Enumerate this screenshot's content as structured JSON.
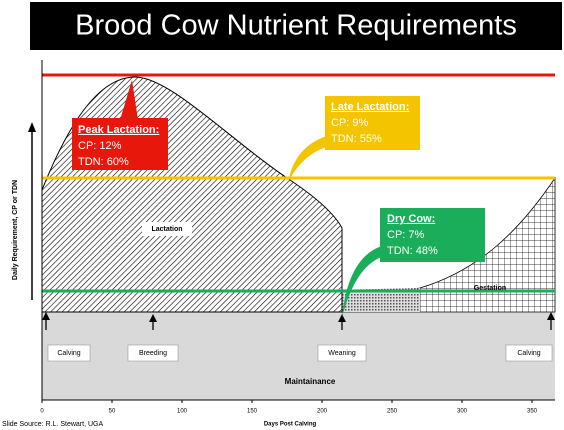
{
  "title": "Brood Cow Nutrient Requirements",
  "callouts": [
    {
      "heading": "Peak Lactation:",
      "lines": [
        "CP: 12%",
        "TDN: 60%"
      ]
    },
    {
      "heading": "Late Lactation:",
      "lines": [
        "CP: 9%",
        "TDN: 55%"
      ]
    },
    {
      "heading": "Dry Cow:",
      "lines": [
        "CP: 7%",
        "TDN: 48%"
      ]
    }
  ],
  "regions": [
    "Lactation",
    "Gestation",
    "Maintainance"
  ],
  "events": [
    "Calving",
    "Breeding",
    "Weaning",
    "Calving"
  ],
  "y_axis_label": "Daily Requirement, CP or TDN",
  "x_axis": {
    "label": "Days Post Calving",
    "ticks": [
      0,
      50,
      100,
      150,
      200,
      250,
      300,
      350
    ]
  },
  "source": "Slide Source: R.L. Stewart, UGA"
}
